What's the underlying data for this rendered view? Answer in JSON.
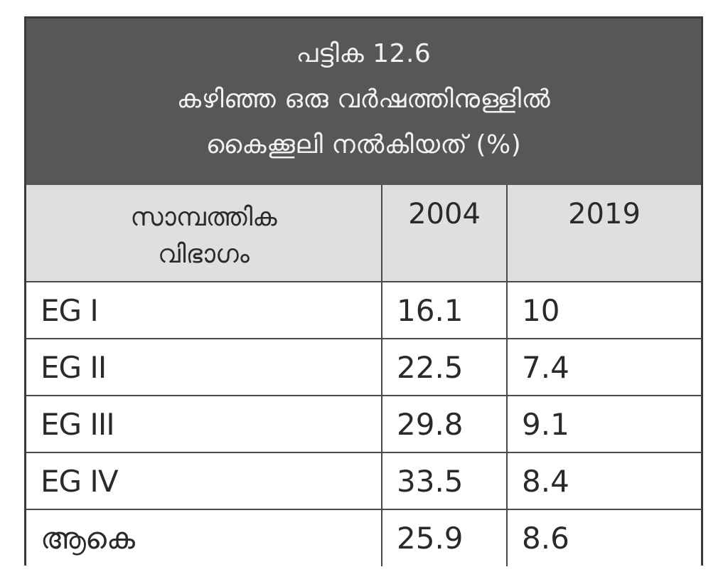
{
  "table": {
    "caption": {
      "number_label": "പട്ടിക 12.6",
      "title_line_1": "കഴിഞ്ഞ ഒരു വർഷത്തിനുള്ളിൽ",
      "title_line_2": "കൈക്കൂലി നൽകിയത് (%)"
    },
    "headers": {
      "category": "സാമ്പത്തിക വിഭാഗം",
      "category_line_1": "സാമ്പത്തിക",
      "category_line_2": "വിഭാഗം",
      "year_1": "2004",
      "year_2": "2019"
    },
    "rows": [
      {
        "label": "EG I",
        "v2004": "16.1",
        "v2019": "10"
      },
      {
        "label": "EG II",
        "v2004": "22.5",
        "v2019": "7.4"
      },
      {
        "label": "EG III",
        "v2004": "29.8",
        "v2019": "9.1"
      },
      {
        "label": "EG IV",
        "v2004": "33.5",
        "v2019": "8.4"
      },
      {
        "label": "ആകെ",
        "v2004": "25.9",
        "v2019": "8.6"
      }
    ],
    "colors": {
      "title_bg": "#575757",
      "title_text": "#f2f2f2",
      "header_bg": "#dedfe0",
      "border": "#4a4a4a"
    }
  }
}
